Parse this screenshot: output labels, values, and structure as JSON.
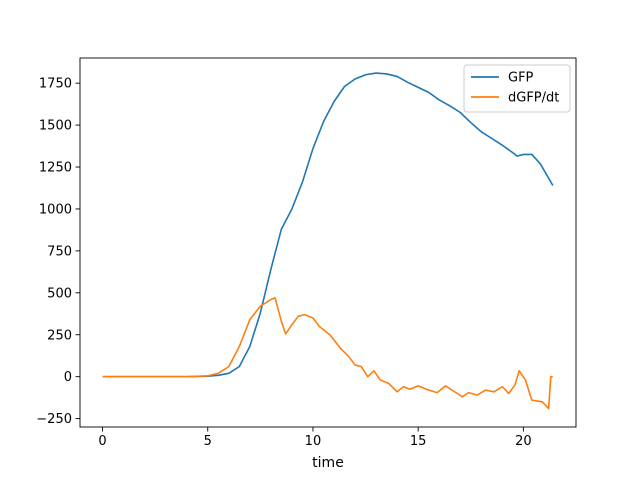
{
  "chart_data": {
    "type": "line",
    "title": "",
    "xlabel": "time",
    "ylabel": "",
    "xlim": [
      -1.07,
      22.5
    ],
    "ylim": [
      -300,
      1900
    ],
    "xticks": [
      0,
      5,
      10,
      15,
      20
    ],
    "yticks": [
      -250,
      0,
      250,
      500,
      750,
      1000,
      1250,
      1500,
      1750
    ],
    "grid": false,
    "legend_position": "top-right",
    "series": [
      {
        "name": "GFP",
        "color": "#1f77b4",
        "points": [
          [
            0,
            0
          ],
          [
            1,
            0
          ],
          [
            2,
            0
          ],
          [
            3,
            0
          ],
          [
            4,
            0
          ],
          [
            5,
            3
          ],
          [
            5.5,
            8
          ],
          [
            6,
            20
          ],
          [
            6.5,
            60
          ],
          [
            7,
            180
          ],
          [
            7.5,
            380
          ],
          [
            8,
            640
          ],
          [
            8.5,
            880
          ],
          [
            9,
            1000
          ],
          [
            9.5,
            1160
          ],
          [
            10,
            1360
          ],
          [
            10.5,
            1520
          ],
          [
            11,
            1640
          ],
          [
            11.5,
            1730
          ],
          [
            12,
            1775
          ],
          [
            12.5,
            1800
          ],
          [
            13,
            1810
          ],
          [
            13.5,
            1805
          ],
          [
            14,
            1790
          ],
          [
            14.5,
            1755
          ],
          [
            15,
            1725
          ],
          [
            15.5,
            1695
          ],
          [
            16,
            1650
          ],
          [
            16.5,
            1615
          ],
          [
            17,
            1575
          ],
          [
            17.5,
            1515
          ],
          [
            18,
            1460
          ],
          [
            18.5,
            1420
          ],
          [
            19,
            1380
          ],
          [
            19.5,
            1335
          ],
          [
            19.7,
            1315
          ],
          [
            20,
            1325
          ],
          [
            20.4,
            1325
          ],
          [
            20.8,
            1270
          ],
          [
            21.4,
            1140
          ]
        ]
      },
      {
        "name": "dGFP/dt",
        "color": "#ff7f0e",
        "points": [
          [
            0,
            0
          ],
          [
            1,
            0
          ],
          [
            2,
            0
          ],
          [
            3,
            0
          ],
          [
            4,
            0
          ],
          [
            5,
            5
          ],
          [
            5.5,
            20
          ],
          [
            6,
            60
          ],
          [
            6.5,
            180
          ],
          [
            7,
            340
          ],
          [
            7.5,
            420
          ],
          [
            8,
            460
          ],
          [
            8.2,
            470
          ],
          [
            8.5,
            330
          ],
          [
            8.7,
            255
          ],
          [
            9,
            310
          ],
          [
            9.3,
            360
          ],
          [
            9.6,
            370
          ],
          [
            10,
            350
          ],
          [
            10.3,
            300
          ],
          [
            10.8,
            250
          ],
          [
            11.3,
            170
          ],
          [
            11.7,
            120
          ],
          [
            12,
            70
          ],
          [
            12.3,
            60
          ],
          [
            12.6,
            0
          ],
          [
            12.9,
            35
          ],
          [
            13.2,
            -20
          ],
          [
            13.6,
            -40
          ],
          [
            14,
            -90
          ],
          [
            14.3,
            -60
          ],
          [
            14.6,
            -75
          ],
          [
            15,
            -55
          ],
          [
            15.5,
            -80
          ],
          [
            15.9,
            -95
          ],
          [
            16.3,
            -55
          ],
          [
            16.8,
            -95
          ],
          [
            17.1,
            -120
          ],
          [
            17.4,
            -95
          ],
          [
            17.8,
            -110
          ],
          [
            18.2,
            -80
          ],
          [
            18.6,
            -90
          ],
          [
            19,
            -60
          ],
          [
            19.3,
            -100
          ],
          [
            19.6,
            -50
          ],
          [
            19.8,
            35
          ],
          [
            20.1,
            -20
          ],
          [
            20.4,
            -140
          ],
          [
            20.9,
            -150
          ],
          [
            21.2,
            -190
          ],
          [
            21.3,
            0
          ],
          [
            21.4,
            0
          ]
        ]
      }
    ]
  }
}
